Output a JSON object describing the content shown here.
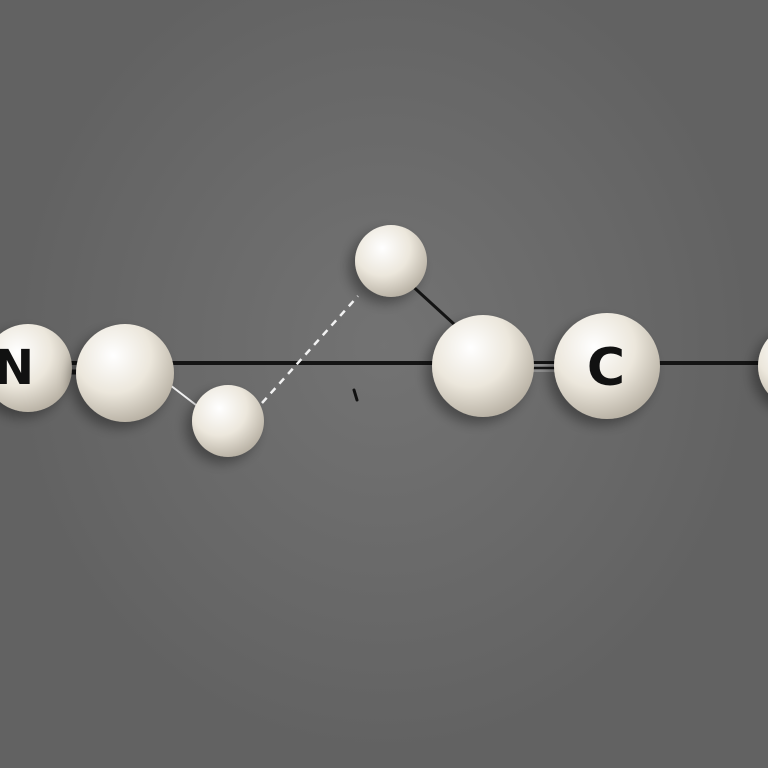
{
  "diagram": {
    "atoms": [
      {
        "id": "n",
        "label": "N"
      },
      {
        "id": "n-neighbor",
        "label": ""
      },
      {
        "id": "small-lower",
        "label": ""
      },
      {
        "id": "small-upper",
        "label": ""
      },
      {
        "id": "center",
        "label": ""
      },
      {
        "id": "c",
        "label": "C"
      },
      {
        "id": "edge-right",
        "label": ""
      }
    ],
    "colors": {
      "background": "#6a6a6a",
      "atom": "#ece7dc",
      "bond": "#141414",
      "dashed_bond": "#f2f2f2",
      "label": "#111111"
    }
  }
}
